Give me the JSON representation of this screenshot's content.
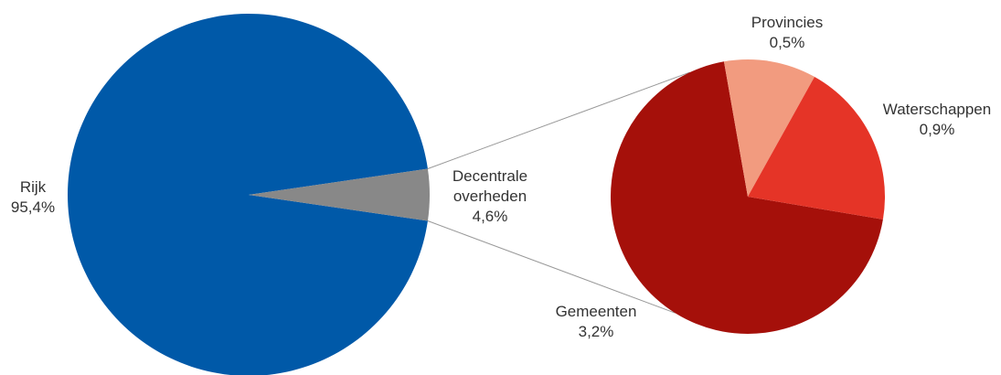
{
  "chart_data": {
    "type": "pie",
    "subtype": "pie-of-pie",
    "main": {
      "slices": [
        {
          "label": "Rijk",
          "value": 95.4,
          "value_label": "95,4%",
          "color": "#0059a8"
        },
        {
          "label": "Decentrale\noverheden",
          "value": 4.6,
          "value_label": "4,6%",
          "color": "#888888"
        }
      ]
    },
    "breakdown_of": "Decentrale\noverheden",
    "secondary": {
      "slices": [
        {
          "label": "Gemeenten",
          "value": 3.2,
          "value_label": "3,2%",
          "color": "#a5100a"
        },
        {
          "label": "Provincies",
          "value": 0.5,
          "value_label": "0,5%",
          "color": "#f29b7f"
        },
        {
          "label": "Waterschappen",
          "value": 0.9,
          "value_label": "0,9%",
          "color": "#e53427"
        }
      ]
    },
    "connector_color": "#999999",
    "legend": "none"
  }
}
